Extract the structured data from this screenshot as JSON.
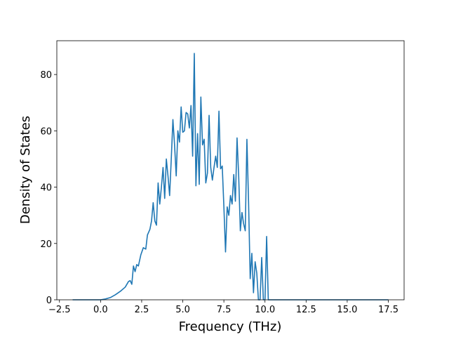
{
  "chart_data": {
    "type": "line",
    "xlabel": "Frequency (THz)",
    "ylabel": "Density of States",
    "x": [
      -1.7,
      0.0,
      0.3,
      0.6,
      0.9,
      1.2,
      1.5,
      1.7,
      1.8,
      1.9,
      2.0,
      2.1,
      2.2,
      2.3,
      2.45,
      2.6,
      2.75,
      2.85,
      3.0,
      3.1,
      3.2,
      3.3,
      3.4,
      3.5,
      3.6,
      3.7,
      3.8,
      3.9,
      4.0,
      4.1,
      4.2,
      4.3,
      4.4,
      4.5,
      4.6,
      4.7,
      4.8,
      4.9,
      5.0,
      5.1,
      5.2,
      5.3,
      5.4,
      5.5,
      5.6,
      5.7,
      5.8,
      5.9,
      6.0,
      6.1,
      6.2,
      6.3,
      6.4,
      6.5,
      6.6,
      6.7,
      6.8,
      6.9,
      7.0,
      7.1,
      7.2,
      7.3,
      7.4,
      7.5,
      7.6,
      7.7,
      7.8,
      7.9,
      8.0,
      8.1,
      8.2,
      8.3,
      8.4,
      8.5,
      8.6,
      8.7,
      8.8,
      8.9,
      9.0,
      9.1,
      9.2,
      9.3,
      9.4,
      9.5,
      9.6,
      9.7,
      9.8,
      9.9,
      10.0,
      10.1,
      10.2,
      17.5
    ],
    "series": [
      {
        "color": "#1f77b4",
        "values": [
          0,
          0,
          0.3,
          0.8,
          1.8,
          3,
          4.5,
          6.5,
          6.8,
          5.5,
          12,
          10,
          12.5,
          12,
          16,
          18.5,
          18,
          23,
          25,
          28,
          34.5,
          28,
          26.5,
          41.5,
          34,
          40,
          47,
          36,
          50,
          44,
          37,
          50,
          64,
          55,
          44,
          60,
          56,
          68.5,
          59.5,
          60,
          66.5,
          66,
          61,
          69,
          51,
          87.5,
          40.5,
          59,
          41,
          72,
          55,
          57,
          41.5,
          45,
          65.5,
          47,
          42.5,
          47,
          51,
          47,
          67,
          46.5,
          47.5,
          33,
          17,
          33,
          30,
          37,
          34,
          44.5,
          35,
          57.5,
          44,
          24.5,
          31,
          27,
          24.5,
          57,
          35,
          7.5,
          16.5,
          2.5,
          13.5,
          9.5,
          0,
          0,
          15,
          0,
          0,
          22.5,
          0,
          0
        ]
      }
    ],
    "xlim": [
      -2.66,
      18.46
    ],
    "xticks": [
      {
        "value": -2.5,
        "label": "−2.5"
      },
      {
        "value": 0,
        "label": "0.0"
      },
      2.5,
      {
        "value": 5,
        "label": "5.0"
      },
      7.5,
      {
        "value": 10,
        "label": "10.0"
      },
      12.5,
      {
        "value": 15,
        "label": "15.0"
      },
      17.5
    ],
    "ylim": [
      0,
      92
    ],
    "yticks": [
      0,
      20,
      40,
      60,
      80
    ]
  }
}
